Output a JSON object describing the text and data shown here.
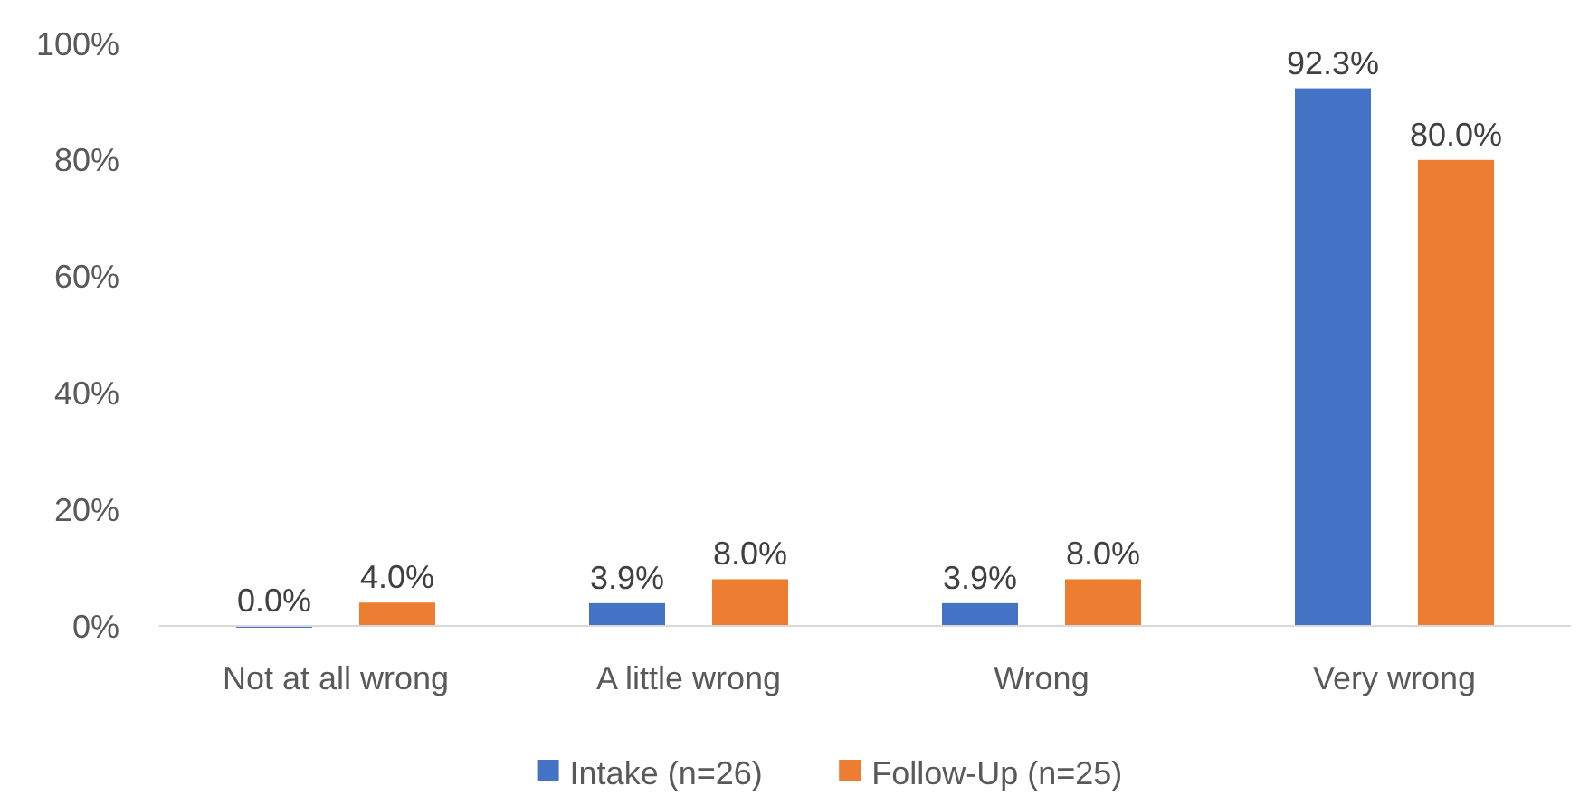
{
  "chart_data": {
    "type": "bar",
    "categories": [
      "Not at all wrong",
      "A little wrong",
      "Wrong",
      "Very wrong"
    ],
    "series": [
      {
        "name": "Intake (n=26)",
        "color": "#4472c4",
        "values": [
          0,
          3.9,
          3.9,
          92.3
        ],
        "value_labels": [
          "0.0%",
          "3.9%",
          "3.9%",
          "92.3%"
        ]
      },
      {
        "name": "Follow-Up (n=25)",
        "color": "#ed7d31",
        "values": [
          4,
          8,
          8,
          80
        ],
        "value_labels": [
          "4.0%",
          "8.0%",
          "8.0%",
          "80.0%"
        ]
      }
    ],
    "ylim": [
      0,
      100
    ],
    "yticks": [
      {
        "value": 0,
        "label": "0%"
      },
      {
        "value": 20,
        "label": "20%"
      },
      {
        "value": 40,
        "label": "40%"
      },
      {
        "value": 60,
        "label": "60%"
      },
      {
        "value": 80,
        "label": "80%"
      },
      {
        "value": 100,
        "label": "100%"
      }
    ],
    "grid": false,
    "legend": "bottom"
  }
}
